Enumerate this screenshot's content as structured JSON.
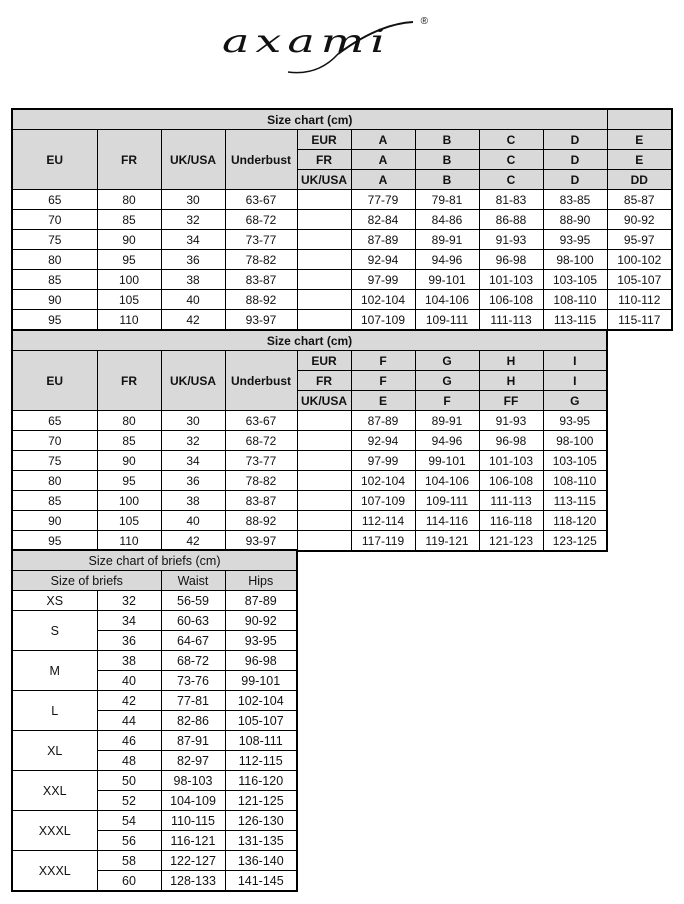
{
  "logo": {
    "text": "axami",
    "registered": "®"
  },
  "bra_tables": [
    {
      "title": "Size chart (cm)",
      "fixed_headers": [
        "EU",
        "FR",
        "UK/USA",
        "Underbust"
      ],
      "system_labels": [
        "EUR",
        "FR",
        "UK/USA"
      ],
      "cups": [
        {
          "EUR": "A",
          "FR": "A",
          "UK/USA": "A"
        },
        {
          "EUR": "B",
          "FR": "B",
          "UK/USA": "B"
        },
        {
          "EUR": "C",
          "FR": "C",
          "UK/USA": "C"
        },
        {
          "EUR": "D",
          "FR": "D",
          "UK/USA": "D"
        },
        {
          "EUR": "E",
          "FR": "E",
          "UK/USA": "DD"
        }
      ],
      "rows": [
        {
          "eu": "65",
          "fr": "80",
          "uk": "30",
          "underbust": "63-67",
          "values": [
            "77-79",
            "79-81",
            "81-83",
            "83-85",
            "85-87"
          ]
        },
        {
          "eu": "70",
          "fr": "85",
          "uk": "32",
          "underbust": "68-72",
          "values": [
            "82-84",
            "84-86",
            "86-88",
            "88-90",
            "90-92"
          ]
        },
        {
          "eu": "75",
          "fr": "90",
          "uk": "34",
          "underbust": "73-77",
          "values": [
            "87-89",
            "89-91",
            "91-93",
            "93-95",
            "95-97"
          ]
        },
        {
          "eu": "80",
          "fr": "95",
          "uk": "36",
          "underbust": "78-82",
          "values": [
            "92-94",
            "94-96",
            "96-98",
            "98-100",
            "100-102"
          ]
        },
        {
          "eu": "85",
          "fr": "100",
          "uk": "38",
          "underbust": "83-87",
          "values": [
            "97-99",
            "99-101",
            "101-103",
            "103-105",
            "105-107"
          ]
        },
        {
          "eu": "90",
          "fr": "105",
          "uk": "40",
          "underbust": "88-92",
          "values": [
            "102-104",
            "104-106",
            "106-108",
            "108-110",
            "110-112"
          ]
        },
        {
          "eu": "95",
          "fr": "110",
          "uk": "42",
          "underbust": "93-97",
          "values": [
            "107-109",
            "109-111",
            "111-113",
            "113-115",
            "115-117"
          ]
        }
      ]
    },
    {
      "title": "Size chart (cm)",
      "fixed_headers": [
        "EU",
        "FR",
        "UK/USA",
        "Underbust"
      ],
      "system_labels": [
        "EUR",
        "FR",
        "UK/USA"
      ],
      "cups": [
        {
          "EUR": "F",
          "FR": "F",
          "UK/USA": "E"
        },
        {
          "EUR": "G",
          "FR": "G",
          "UK/USA": "F"
        },
        {
          "EUR": "H",
          "FR": "H",
          "UK/USA": "FF"
        },
        {
          "EUR": "I",
          "FR": "I",
          "UK/USA": "G"
        }
      ],
      "rows": [
        {
          "eu": "65",
          "fr": "80",
          "uk": "30",
          "underbust": "63-67",
          "values": [
            "87-89",
            "89-91",
            "91-93",
            "93-95"
          ]
        },
        {
          "eu": "70",
          "fr": "85",
          "uk": "32",
          "underbust": "68-72",
          "values": [
            "92-94",
            "94-96",
            "96-98",
            "98-100"
          ]
        },
        {
          "eu": "75",
          "fr": "90",
          "uk": "34",
          "underbust": "73-77",
          "values": [
            "97-99",
            "99-101",
            "101-103",
            "103-105"
          ]
        },
        {
          "eu": "80",
          "fr": "95",
          "uk": "36",
          "underbust": "78-82",
          "values": [
            "102-104",
            "104-106",
            "106-108",
            "108-110"
          ]
        },
        {
          "eu": "85",
          "fr": "100",
          "uk": "38",
          "underbust": "83-87",
          "values": [
            "107-109",
            "109-111",
            "111-113",
            "113-115"
          ]
        },
        {
          "eu": "90",
          "fr": "105",
          "uk": "40",
          "underbust": "88-92",
          "values": [
            "112-114",
            "114-116",
            "116-118",
            "118-120"
          ]
        },
        {
          "eu": "95",
          "fr": "110",
          "uk": "42",
          "underbust": "93-97",
          "values": [
            "117-119",
            "119-121",
            "121-123",
            "123-125"
          ]
        }
      ]
    }
  ],
  "briefs": {
    "title": "Size chart of briefs (cm)",
    "headers": [
      "Size of briefs",
      "Waist",
      "Hips"
    ],
    "groups": [
      {
        "size": "XS",
        "rows": [
          [
            "32",
            "56-59",
            "87-89"
          ]
        ]
      },
      {
        "size": "S",
        "rows": [
          [
            "34",
            "60-63",
            "90-92"
          ],
          [
            "36",
            "64-67",
            "93-95"
          ]
        ]
      },
      {
        "size": "M",
        "rows": [
          [
            "38",
            "68-72",
            "96-98"
          ],
          [
            "40",
            "73-76",
            "99-101"
          ]
        ]
      },
      {
        "size": "L",
        "rows": [
          [
            "42",
            "77-81",
            "102-104"
          ],
          [
            "44",
            "82-86",
            "105-107"
          ]
        ]
      },
      {
        "size": "XL",
        "rows": [
          [
            "46",
            "87-91",
            "108-111"
          ],
          [
            "48",
            "82-97",
            "112-115"
          ]
        ]
      },
      {
        "size": "XXL",
        "rows": [
          [
            "50",
            "98-103",
            "116-120"
          ],
          [
            "52",
            "104-109",
            "121-125"
          ]
        ]
      },
      {
        "size": "XXXL",
        "rows": [
          [
            "54",
            "110-115",
            "126-130"
          ],
          [
            "56",
            "116-121",
            "131-135"
          ]
        ]
      },
      {
        "size": "XXXL",
        "rows": [
          [
            "58",
            "122-127",
            "136-140"
          ],
          [
            "60",
            "128-133",
            "141-145"
          ]
        ]
      }
    ]
  }
}
